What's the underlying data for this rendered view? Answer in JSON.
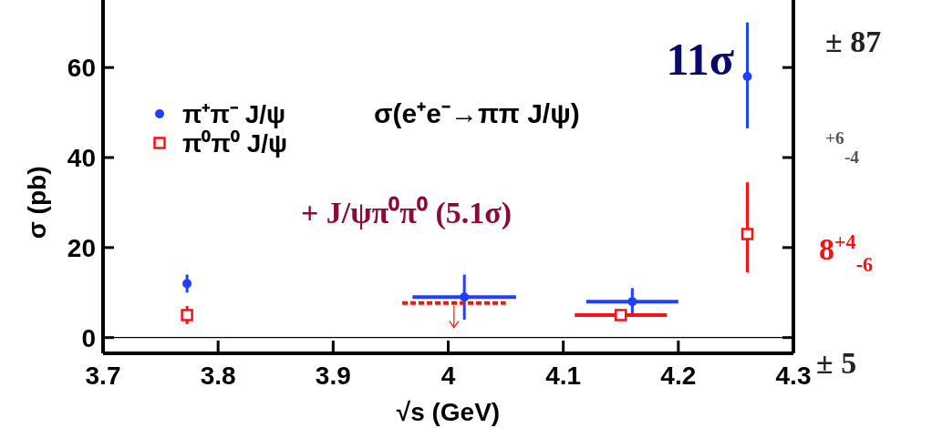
{
  "chart_data": {
    "type": "scatter",
    "xlabel": "√s (GeV)",
    "ylabel": "σ (pb)",
    "xlim": [
      3.7,
      4.3
    ],
    "ylim": [
      -3.5,
      75
    ],
    "xticks": [
      3.7,
      3.8,
      3.9,
      4,
      4.1,
      4.2,
      4.3
    ],
    "yticks": [
      0,
      20,
      40,
      60
    ],
    "legend": "top left",
    "grid": false,
    "series": [
      {
        "name": "π⁺π⁻ J/ψ",
        "color": "#2040ff",
        "marker": "circle",
        "x": [
          3.773,
          4.014,
          4.16,
          4.26
        ],
        "values": [
          12,
          9,
          8,
          58
        ],
        "errors": [
          2,
          5,
          3,
          [
            46.5,
            70
          ]
        ],
        "xerrors": [
          null,
          0.045,
          0.04,
          null
        ]
      },
      {
        "name": "π⁰π⁰ J/ψ",
        "color": "#ff1010",
        "marker": "square",
        "x": [
          3.773,
          4.15,
          4.26
        ],
        "values": [
          5,
          5,
          23
        ],
        "errors": [
          2,
          null,
          [
            14.5,
            34.5
          ]
        ],
        "xerrors": [
          null,
          0.04,
          null
        ]
      },
      {
        "type": "line",
        "color": "#ff1010",
        "line_style": "dashed",
        "x": [
          3.96,
          4.05
        ],
        "values": [
          7.7,
          7.7
        ]
      }
    ],
    "ref_lines": [
      {
        "axis": "y",
        "value": 0,
        "color": "#000000"
      }
    ],
    "annotations": [
      "11σ",
      "σ(e⁺e⁻→ππ J/ψ)",
      "+ J/ψπ⁰π⁰ (5.1σ)",
      "± 87",
      "$^{+6}$$_{-4}$",
      "8$^{+4}$$_{-6}$",
      "± 5"
    ]
  }
}
